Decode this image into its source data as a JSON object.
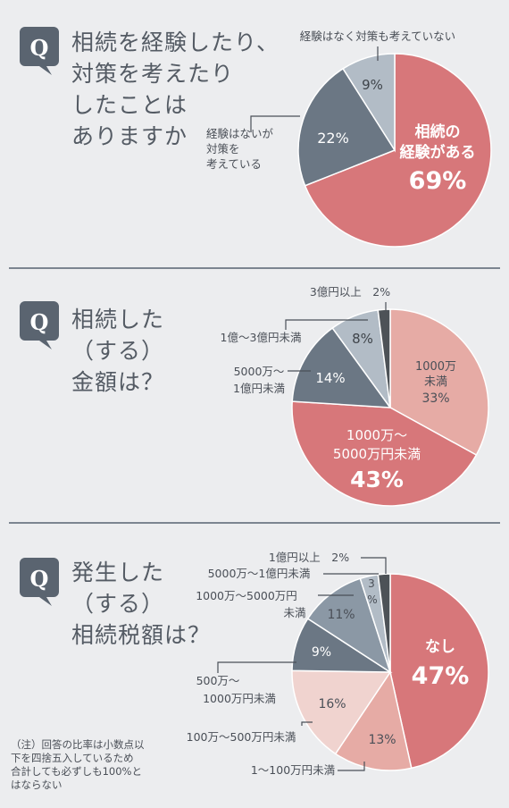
{
  "sections": [
    {
      "badge": "Q",
      "question": "相続を経験したり、\n対策を考えたり\nしたことは\nありますか"
    },
    {
      "badge": "Q",
      "question": "相続した\n（する）\n金額は？"
    },
    {
      "badge": "Q",
      "question": "発生した\n（する）\n相続税額は？"
    }
  ],
  "note": "（注）回答の比率は小数点以\n下を四捨五入しているため\n合計しても必ずしも100%と\nはならない",
  "colors": {
    "badge": "#5a6470",
    "red": "#d7777a",
    "pink_mid": "#e6aba5",
    "pink_light": "#f0d3cf",
    "slate_dark": "#6b7784",
    "slate_mid": "#8b98a5",
    "slate_light": "#b2bcc6",
    "near_black": "#4d5257"
  },
  "chart_data": [
    {
      "type": "pie",
      "title": "相続を経験したり、対策を考えたりしたことはありますか",
      "slices": [
        {
          "label": "相続の経験がある",
          "value": 69,
          "value_text": "69%"
        },
        {
          "label": "経験はないが対策を考えている",
          "value": 22,
          "value_text": "22%"
        },
        {
          "label": "経験はなく対策も考えていない",
          "value": 9,
          "value_text": "9%"
        }
      ]
    },
    {
      "type": "pie",
      "title": "相続した（する）金額は？",
      "slices": [
        {
          "label": "1000万円未満",
          "value": 33,
          "value_text": "33%"
        },
        {
          "label": "1000万～5000万円未満",
          "value": 43,
          "value_text": "43%"
        },
        {
          "label": "5000万～1億円未満",
          "value": 14,
          "value_text": "14%"
        },
        {
          "label": "1億～3億円未満",
          "value": 8,
          "value_text": "8%"
        },
        {
          "label": "3億円以上",
          "value": 2,
          "value_text": "2%"
        }
      ]
    },
    {
      "type": "pie",
      "title": "発生した（する）相続税額は？",
      "slices": [
        {
          "label": "なし",
          "value": 47,
          "value_text": "47%"
        },
        {
          "label": "1～100万円未満",
          "value": 13,
          "value_text": "13%"
        },
        {
          "label": "100万～500万円未満",
          "value": 16,
          "value_text": "16%"
        },
        {
          "label": "500万～1000万円未満",
          "value": 9,
          "value_text": "9%"
        },
        {
          "label": "1000万～5000万円未満",
          "value": 11,
          "value_text": "11%"
        },
        {
          "label": "5000万～1億円未満",
          "value": 3,
          "value_text": "3%"
        },
        {
          "label": "1億円以上",
          "value": 2,
          "value_text": "2%"
        }
      ]
    }
  ]
}
